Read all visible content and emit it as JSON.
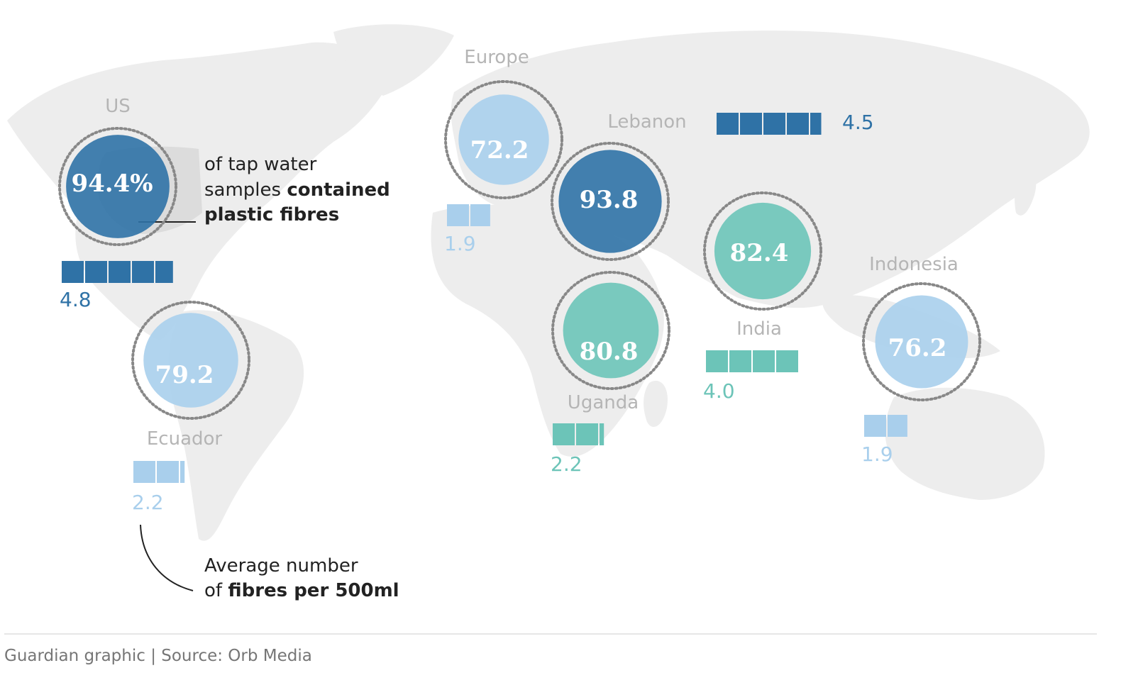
{
  "legend": {
    "pct_line1": "of tap water",
    "pct_line2_regular": "samples ",
    "pct_line2_bold": "contained",
    "pct_line3_bold": "plastic fibres",
    "fibre_line1": "Average number",
    "fibre_line2_regular": "of ",
    "fibre_line2_bold": "fibres per 500ml"
  },
  "footer": "Guardian graphic | Source: Orb Media",
  "colors": {
    "dark_blue": "#2f72a6",
    "light_blue": "#a9cfec",
    "teal": "#6cc4b8",
    "land": "#ededed",
    "dotted_ring": "#888888"
  },
  "regions": [
    {
      "id": "us",
      "name": "US",
      "pct_label": "94.4%",
      "pct": 94.4,
      "fibres_label": "4.8",
      "fibres": 4.8,
      "color": "dark_blue"
    },
    {
      "id": "ecuador",
      "name": "Ecuador",
      "pct_label": "79.2",
      "pct": 79.2,
      "fibres_label": "2.2",
      "fibres": 2.2,
      "color": "light_blue"
    },
    {
      "id": "europe",
      "name": "Europe",
      "pct_label": "72.2",
      "pct": 72.2,
      "fibres_label": "1.9",
      "fibres": 1.9,
      "color": "light_blue"
    },
    {
      "id": "lebanon",
      "name": "Lebanon",
      "pct_label": "93.8",
      "pct": 93.8,
      "fibres_label": "4.5",
      "fibres": 4.5,
      "color": "dark_blue"
    },
    {
      "id": "uganda",
      "name": "Uganda",
      "pct_label": "80.8",
      "pct": 80.8,
      "fibres_label": "2.2",
      "fibres": 2.2,
      "color": "teal"
    },
    {
      "id": "india",
      "name": "India",
      "pct_label": "82.4",
      "pct": 82.4,
      "fibres_label": "4.0",
      "fibres": 4.0,
      "color": "teal"
    },
    {
      "id": "indonesia",
      "name": "Indonesia",
      "pct_label": "76.2",
      "pct": 76.2,
      "fibres_label": "1.9",
      "fibres": 1.9,
      "color": "light_blue"
    }
  ]
}
